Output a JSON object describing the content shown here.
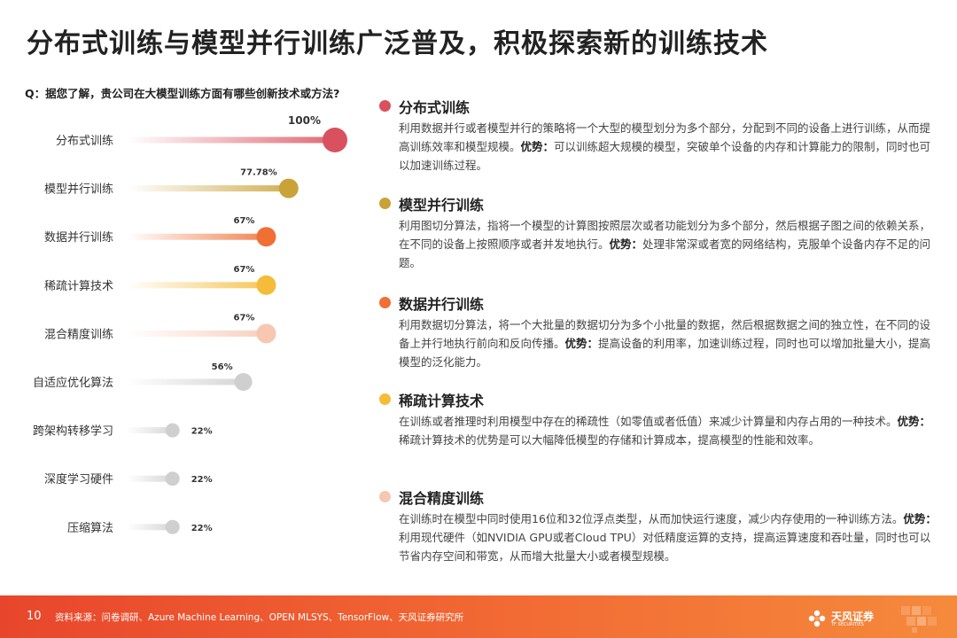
{
  "title": "分布式训练与模型并行训练广泛普及，积极探索新的训练技术",
  "question": "Q：据您了解，贵公司在大模型训练方面有哪些创新技术或方法?",
  "chart_data": {
    "type": "bar",
    "categories": [
      "分布式训练",
      "模型并行训练",
      "数据并行训练",
      "稀疏计算技术",
      "混合精度训练",
      "自适应优化算法",
      "跨架构转移学习",
      "深度学习硬件",
      "压缩算法"
    ],
    "values": [
      100,
      77.78,
      67,
      67,
      67,
      56,
      22,
      22,
      22
    ],
    "value_labels": [
      "100%",
      "77.78%",
      "67%",
      "67%",
      "67%",
      "56%",
      "22%",
      "22%",
      "22%"
    ],
    "xlim": [
      0,
      100
    ],
    "colors": [
      "#d9505e",
      "#c9a238",
      "#ef6f35",
      "#f5bc3a",
      "#f7c7b2",
      "#cfcfcf",
      "#cfcfcf",
      "#cfcfcf",
      "#cfcfcf"
    ],
    "grid": false,
    "legend": "none"
  },
  "items": [
    {
      "title": "分布式训练",
      "color": "#d9505e",
      "text": "利用数据并行或者模型并行的策略将一个大型的模型划分为多个部分，分配到不同的设备上进行训练，从而提高训练效率和模型规模。",
      "adv_label": "优势：",
      "adv": "可以训练超大规模的模型，突破单个设备的内存和计算能力的限制，同时也可以加速训练过程。"
    },
    {
      "title": "模型并行训练",
      "color": "#c9a238",
      "text": "利用图切分算法，指将一个模型的计算图按照层次或者功能划分为多个部分，然后根据子图之间的依赖关系，在不同的设备上按照顺序或者并发地执行。",
      "adv_label": "优势：",
      "adv": "处理非常深或者宽的网络结构，克服单个设备内存不足的问题。"
    },
    {
      "title": "数据并行训练",
      "color": "#ef6f35",
      "text": "利用数据切分算法，将一个大批量的数据切分为多个小批量的数据，然后根据数据之间的独立性，在不同的设备上并行地执行前向和反向传播。",
      "adv_label": "优势：",
      "adv": "提高设备的利用率，加速训练过程，同时也可以增加批量大小，提高模型的泛化能力。"
    },
    {
      "title": "稀疏计算技术",
      "color": "#f5bc3a",
      "text": "在训练或者推理时利用模型中存在的稀疏性（如零值或者低值）来减少计算量和内存占用的一种技术。",
      "adv_label": "优势：",
      "adv": "稀疏计算技术的优势是可以大幅降低模型的存储和计算成本，提高模型的性能和效率。"
    },
    {
      "title": "混合精度训练",
      "color": "#f7c7b2",
      "text": "在训练时在模型中同时使用16位和32位浮点类型，从而加快运行速度，减少内存使用的一种训练方法。",
      "adv_label": "优势：",
      "adv": "利用现代硬件（如NVIDIA GPU或者Cloud TPU）对低精度运算的支持，提高运算速度和吞吐量，同时也可以节省内存空间和带宽，从而增大批量大小或者模型规模。"
    }
  ],
  "footer": {
    "page": "10",
    "source": "资料来源：问卷调研、Azure Machine Learning、OPEN MLSYS、TensorFlow、天风证券研究所",
    "logo_name": "天风证券",
    "logo_sub": "TF SECURITIES"
  }
}
